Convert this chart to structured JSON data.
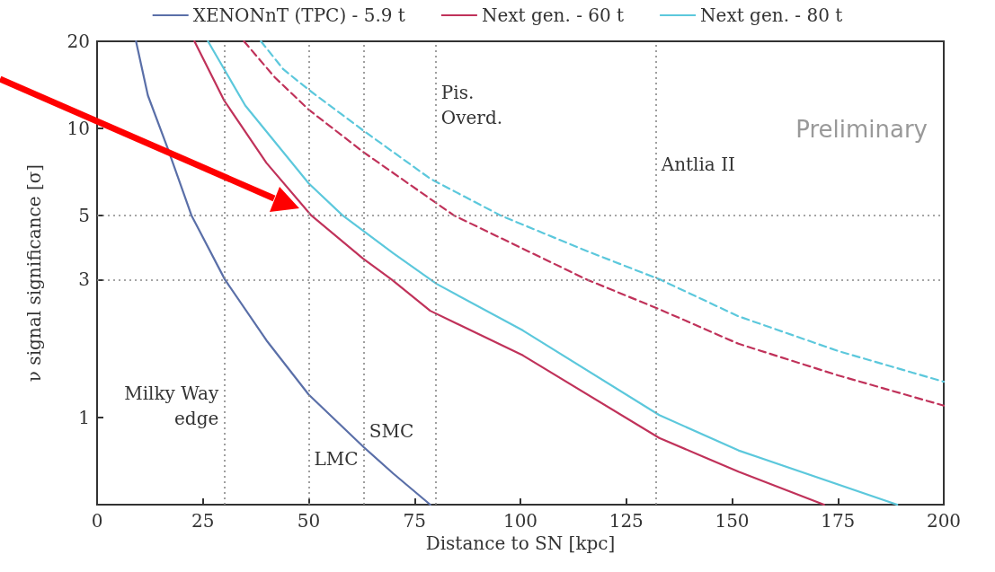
{
  "chart_data": {
    "type": "line",
    "xlabel": "Distance to SN [kpc]",
    "ylabel": "ν signal significance [σ]",
    "xlim": [
      0,
      200
    ],
    "xticks": [
      0,
      25,
      50,
      75,
      100,
      125,
      150,
      175,
      200
    ],
    "ylim": [
      0.5,
      20
    ],
    "yticks": [
      1,
      3,
      5,
      10,
      20
    ],
    "log": "y",
    "grid": false,
    "legend": "top",
    "marker": "none",
    "series": [
      {
        "name": "XENONnT (TPC) - 5.9 t",
        "color": "#5a6fa8",
        "line_style": "solid",
        "x": [
          9.2,
          12,
          16.6,
          22.3,
          30.2,
          40,
          50,
          63,
          70,
          78.7
        ],
        "values": [
          20,
          13,
          8.6,
          5,
          3,
          1.85,
          1.2,
          0.79,
          0.64,
          0.5
        ]
      },
      {
        "name": "Next gen. - 60 t",
        "color": "#c0325a",
        "line_style": "solid",
        "x": [
          23,
          30,
          40,
          50.6,
          62.8,
          69.6,
          78.7,
          100.6,
          132.8,
          151.5,
          171.7
        ],
        "values": [
          20,
          12.5,
          7.6,
          5,
          3.55,
          3,
          2.34,
          1.64,
          0.85,
          0.65,
          0.5
        ]
      },
      {
        "name": "Next gen. - 80 t",
        "color": "#5cc8dc",
        "line_style": "solid",
        "x": [
          26.2,
          35,
          50,
          58,
          70,
          80.2,
          100.6,
          132.8,
          151.5,
          189
        ],
        "values": [
          20,
          12,
          6.45,
          5,
          3.7,
          2.9,
          2.0,
          1.02,
          0.77,
          0.5
        ]
      },
      {
        "color": "#c0325a",
        "line_style": "dashed",
        "x": [
          34.7,
          42,
          50,
          62.8,
          84.3,
          115.7,
          132.8,
          151.5,
          175,
          200
        ],
        "values": [
          20,
          15,
          11.6,
          8.3,
          5,
          3,
          2.37,
          1.8,
          1.4,
          1.1
        ]
      },
      {
        "color": "#5cc8dc",
        "line_style": "dashed",
        "x": [
          38.7,
          44,
          50,
          62.8,
          78.7,
          95.3,
          115,
          133,
          151.5,
          175,
          200
        ],
        "values": [
          20,
          16,
          13.6,
          9.85,
          6.7,
          5,
          3.8,
          3,
          2.24,
          1.7,
          1.33
        ]
      }
    ],
    "ref_lines": [
      {
        "axis": "x",
        "value": 30,
        "color": "#888888",
        "line_style": "dotted"
      },
      {
        "axis": "x",
        "value": 50,
        "color": "#888888",
        "line_style": "dotted"
      },
      {
        "axis": "x",
        "value": 63,
        "color": "#888888",
        "line_style": "dotted"
      },
      {
        "axis": "x",
        "value": 80,
        "color": "#888888",
        "line_style": "dotted"
      },
      {
        "axis": "x",
        "value": 132,
        "color": "#888888",
        "line_style": "dotted"
      },
      {
        "axis": "y",
        "value": 5,
        "color": "#888888",
        "line_style": "dotted"
      },
      {
        "axis": "y",
        "value": 3,
        "color": "#888888",
        "line_style": "dotted"
      }
    ],
    "annotations": [
      {
        "text": "Milky Way\nedge",
        "x": 30,
        "y": 1.1
      },
      {
        "text": "LMC",
        "x": 50,
        "y": 0.72
      },
      {
        "text": "SMC",
        "x": 63,
        "y": 0.9
      },
      {
        "text": "Pis.\nOverd.",
        "x": 80,
        "y": 12
      },
      {
        "text": "Antlia II",
        "x": 132,
        "y": 7.5
      },
      "Preliminary"
    ]
  }
}
